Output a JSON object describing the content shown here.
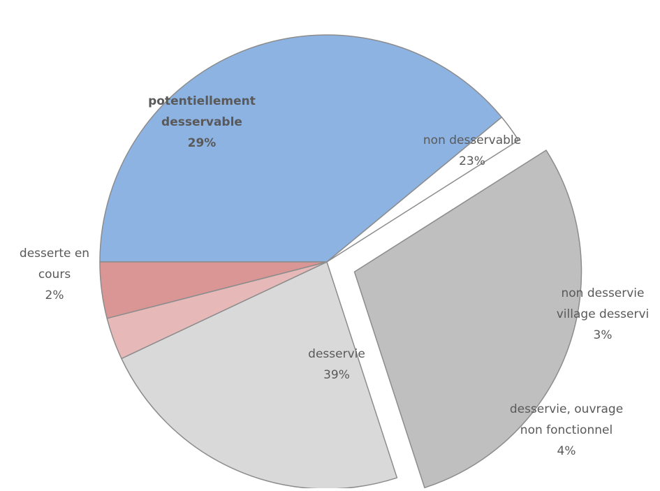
{
  "chart_data": {
    "type": "pie",
    "title": "",
    "slices": [
      {
        "id": "desservie",
        "label_lines": [
          "desservie",
          "39%"
        ],
        "value": 39,
        "color": "#8db3e2",
        "exploded": false,
        "label_bold": false,
        "label_placement": "inside"
      },
      {
        "id": "desserte-en-cours",
        "label_lines": [
          "desserte en",
          "cours",
          "2%"
        ],
        "value": 2,
        "color": "#ffffff",
        "exploded": false,
        "label_bold": false,
        "label_placement": "outside"
      },
      {
        "id": "potentiellement-desservable",
        "label_lines": [
          "potentiellement",
          "desservable",
          "29%"
        ],
        "value": 29,
        "color": "#bfbfbf",
        "exploded": true,
        "label_bold": true,
        "label_placement": "inside"
      },
      {
        "id": "non-desservable",
        "label_lines": [
          "non desservable",
          "23%"
        ],
        "value": 23,
        "color": "#d9d9d9",
        "exploded": false,
        "label_bold": false,
        "label_placement": "inside"
      },
      {
        "id": "non-desservie-village-desservi",
        "label_lines": [
          "non desservie",
          "village desservi",
          "3%"
        ],
        "value": 3,
        "color": "#e6b9b8",
        "exploded": false,
        "label_bold": false,
        "label_placement": "outside"
      },
      {
        "id": "desservie-ouvrage-non-fonctionnel",
        "label_lines": [
          "desservie, ouvrage",
          "non fonctionnel",
          "4%"
        ],
        "value": 4,
        "color": "#d99694",
        "exploded": false,
        "label_bold": false,
        "label_placement": "outside"
      }
    ],
    "legend": "none",
    "border_color": "#8c8c8c"
  }
}
